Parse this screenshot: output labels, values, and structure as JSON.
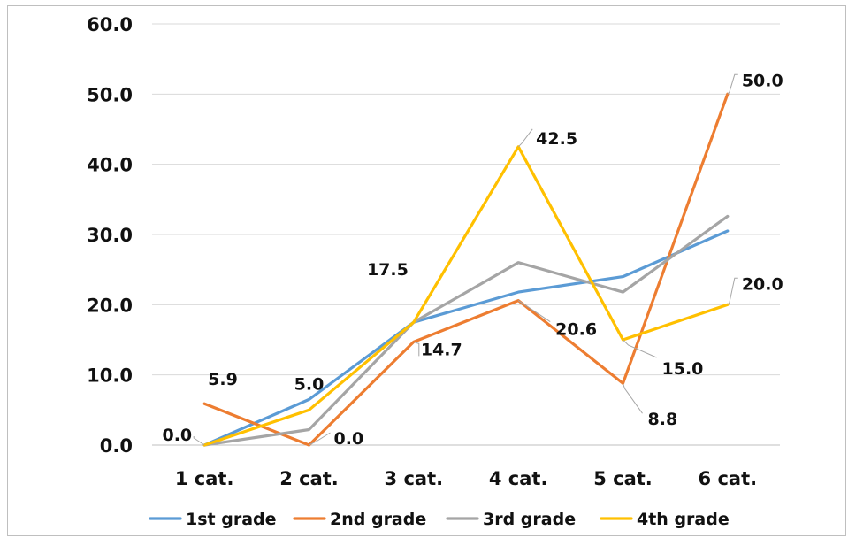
{
  "chart_data": {
    "type": "line",
    "categories": [
      "1 cat.",
      "2 cat.",
      "3 cat.",
      "4 cat.",
      "5 cat.",
      "6 cat."
    ],
    "ylim": [
      0,
      60
    ],
    "yticks": [
      "0.0",
      "10.0",
      "20.0",
      "30.0",
      "40.0",
      "50.0",
      "60.0"
    ],
    "grid": true,
    "legend_position": "bottom",
    "series": [
      {
        "name": "1st grade",
        "color": "#5B9BD5",
        "values": [
          0.0,
          6.5,
          17.5,
          21.8,
          24.0,
          30.5
        ]
      },
      {
        "name": "2nd grade",
        "color": "#ED7D31",
        "values": [
          5.9,
          0.0,
          14.7,
          20.6,
          8.8,
          50.0
        ]
      },
      {
        "name": "3rd grade",
        "color": "#A5A5A5",
        "values": [
          0.0,
          2.2,
          17.5,
          26.0,
          21.8,
          32.6
        ]
      },
      {
        "name": "4th grade",
        "color": "#FFC000",
        "values": [
          0.0,
          5.0,
          17.5,
          42.5,
          15.0,
          20.0
        ]
      }
    ],
    "data_labels": [
      {
        "text": "0.0",
        "category": 0,
        "value": 0.0
      },
      {
        "text": "5.9",
        "category": 0,
        "value": 5.9
      },
      {
        "text": "5.0",
        "category": 1,
        "value": 5.0
      },
      {
        "text": "0.0",
        "category": 1,
        "value": 0.0
      },
      {
        "text": "17.5",
        "category": 2,
        "value": 17.5
      },
      {
        "text": "14.7",
        "category": 2,
        "value": 14.7
      },
      {
        "text": "42.5",
        "category": 3,
        "value": 42.5
      },
      {
        "text": "20.6",
        "category": 3,
        "value": 20.6
      },
      {
        "text": "15.0",
        "category": 4,
        "value": 15.0
      },
      {
        "text": "8.8",
        "category": 4,
        "value": 8.8
      },
      {
        "text": "50.0",
        "category": 5,
        "value": 50.0
      },
      {
        "text": "20.0",
        "category": 5,
        "value": 20.0
      }
    ]
  }
}
